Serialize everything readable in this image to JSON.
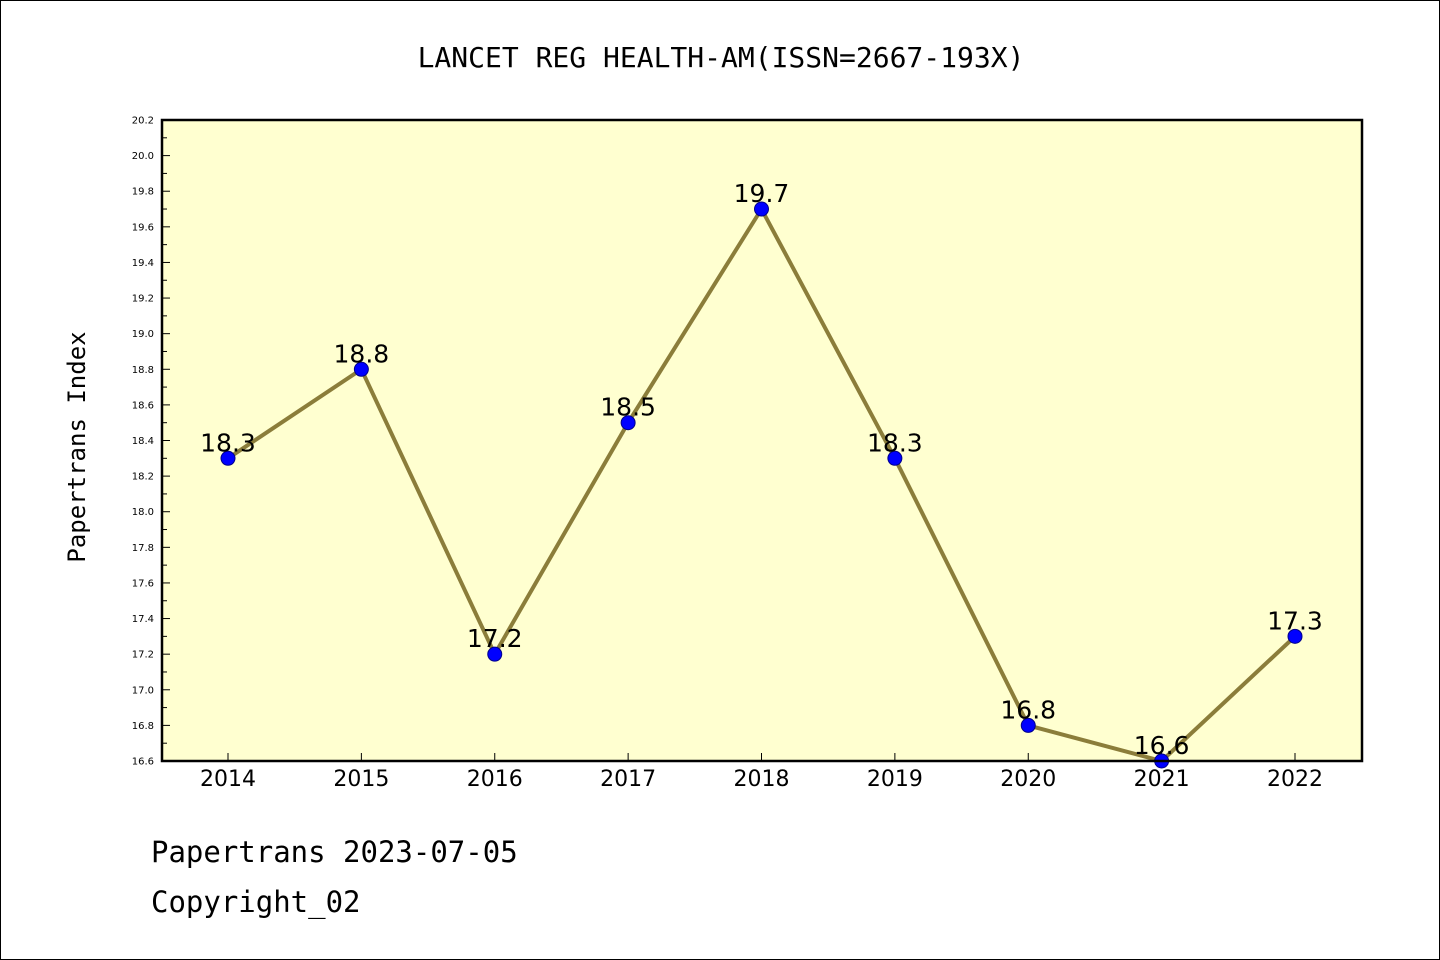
{
  "chart_data": {
    "type": "line",
    "title": "LANCET REG HEALTH-AM(ISSN=2667-193X)",
    "ylabel": "Papertrans Index",
    "xlabel": "",
    "categories": [
      "2014",
      "2015",
      "2016",
      "2017",
      "2018",
      "2019",
      "2020",
      "2021",
      "2022"
    ],
    "values": [
      18.3,
      18.8,
      17.2,
      18.5,
      19.7,
      18.3,
      16.8,
      16.6,
      17.3
    ],
    "data_labels": [
      "18.3",
      "18.8",
      "17.2",
      "18.5",
      "19.7",
      "18.3",
      "16.8",
      "16.6",
      "17.3"
    ],
    "ylim": [
      16.6,
      20.2
    ],
    "yticks": [
      "16.6",
      "16.8",
      "17.0",
      "17.2",
      "17.4",
      "17.6",
      "17.8",
      "18.0",
      "18.2",
      "18.4",
      "18.6",
      "18.8",
      "19.0",
      "19.2",
      "19.4",
      "19.6",
      "19.8",
      "20.0",
      "20.2"
    ],
    "grid": false,
    "colors": {
      "plot_background": "#ffffd0",
      "line": "#8b7d3a",
      "marker": "#0000ff"
    }
  },
  "footer": {
    "line1": "Papertrans 2023-07-05",
    "line2": "Copyright_02"
  }
}
